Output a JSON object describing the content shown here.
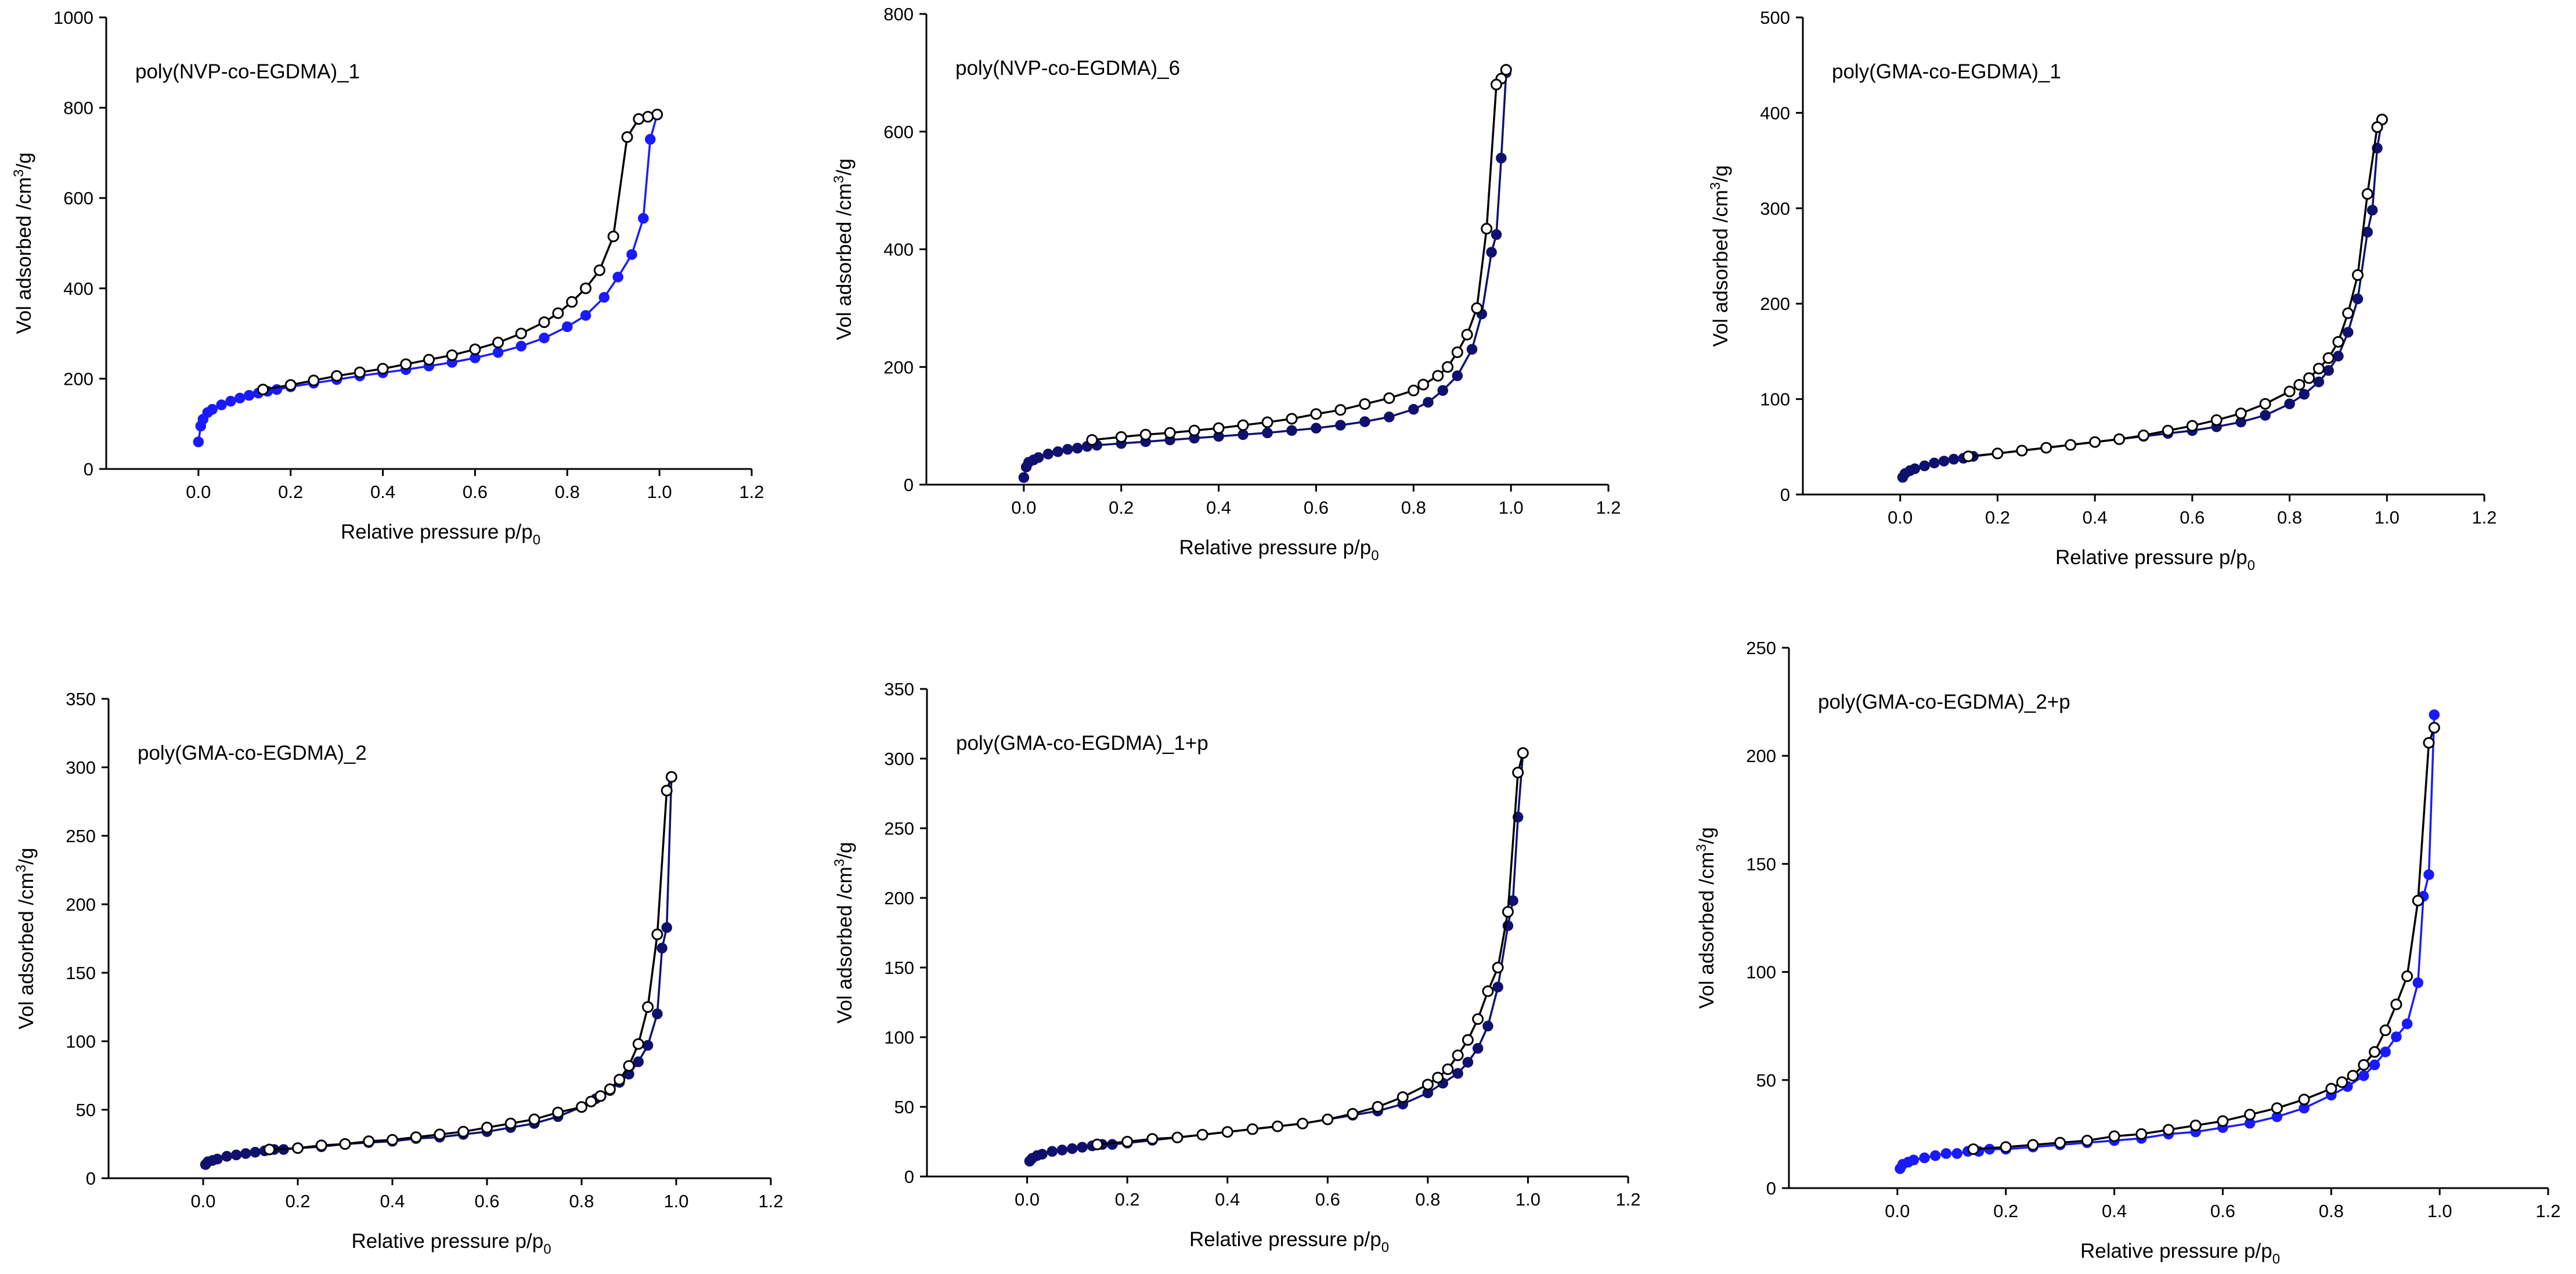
{
  "colors": {
    "desorption": "#000000",
    "adsorption": "#1a1aff",
    "adsorption_dark": "#10106e",
    "axis": "#000000"
  },
  "chart_data": [
    {
      "type": "line",
      "title": "poly(NVP-co-EGDMA)_1",
      "xlabel": "Relative pressure p/p",
      "xlabel_sub": "0",
      "ylabel": "Vol adsorbed /cm",
      "ylabel_sup": "3",
      "ylabel_tail": "/g",
      "xlim": [
        -0.2,
        1.2
      ],
      "ylim": [
        0,
        1000
      ],
      "xticks": [
        "0.0",
        "0.2",
        "0.4",
        "0.6",
        "0.8",
        "1.0",
        "1.2"
      ],
      "xtick_values": [
        0,
        0.2,
        0.4,
        0.6,
        0.8,
        1.0,
        1.2
      ],
      "yticks": [
        "0",
        "200",
        "400",
        "600",
        "800",
        "1000"
      ],
      "ytick_values": [
        0,
        200,
        400,
        600,
        800,
        1000
      ],
      "series": [
        {
          "name": "adsorption",
          "color": "#1a1aff",
          "marker": "filled",
          "x": [
            0.0,
            0.005,
            0.01,
            0.02,
            0.03,
            0.05,
            0.07,
            0.09,
            0.11,
            0.13,
            0.15,
            0.17,
            0.2,
            0.25,
            0.3,
            0.35,
            0.4,
            0.45,
            0.5,
            0.55,
            0.6,
            0.65,
            0.7,
            0.75,
            0.8,
            0.84,
            0.88,
            0.91,
            0.94,
            0.965,
            0.98,
            0.995
          ],
          "y": [
            60,
            95,
            110,
            125,
            132,
            142,
            150,
            157,
            163,
            168,
            172,
            176,
            182,
            190,
            198,
            206,
            213,
            220,
            228,
            236,
            246,
            258,
            272,
            290,
            315,
            340,
            380,
            425,
            475,
            555,
            730,
            785
          ]
        },
        {
          "name": "desorption",
          "color": "#000000",
          "marker": "open",
          "x": [
            0.995,
            0.975,
            0.955,
            0.93,
            0.9,
            0.87,
            0.84,
            0.81,
            0.78,
            0.75,
            0.7,
            0.65,
            0.6,
            0.55,
            0.5,
            0.45,
            0.4,
            0.35,
            0.3,
            0.25,
            0.2,
            0.14
          ],
          "y": [
            785,
            780,
            775,
            735,
            515,
            440,
            400,
            370,
            345,
            325,
            300,
            280,
            265,
            252,
            242,
            232,
            222,
            214,
            206,
            196,
            186,
            176
          ]
        }
      ]
    },
    {
      "type": "line",
      "title": "poly(NVP-co-EGDMA)_6",
      "xlabel": "Relative pressure p/p",
      "xlabel_sub": "0",
      "ylabel": "Vol adsorbed /cm",
      "ylabel_sup": "3",
      "ylabel_tail": "/g",
      "xlim": [
        -0.2,
        1.2
      ],
      "ylim": [
        0,
        800
      ],
      "xticks": [
        "0.0",
        "0.2",
        "0.4",
        "0.6",
        "0.8",
        "1.0",
        "1.2"
      ],
      "xtick_values": [
        0,
        0.2,
        0.4,
        0.6,
        0.8,
        1.0,
        1.2
      ],
      "yticks": [
        "0",
        "200",
        "400",
        "600",
        "800"
      ],
      "ytick_values": [
        0,
        200,
        400,
        600,
        800
      ],
      "series": [
        {
          "name": "adsorption",
          "color": "#10106e",
          "marker": "filled",
          "x": [
            0.0,
            0.005,
            0.01,
            0.02,
            0.03,
            0.05,
            0.07,
            0.09,
            0.11,
            0.13,
            0.15,
            0.2,
            0.25,
            0.3,
            0.35,
            0.4,
            0.45,
            0.5,
            0.55,
            0.6,
            0.65,
            0.7,
            0.75,
            0.8,
            0.83,
            0.86,
            0.89,
            0.92,
            0.94,
            0.96,
            0.97,
            0.98,
            0.99
          ],
          "y": [
            12,
            30,
            38,
            42,
            46,
            52,
            56,
            60,
            62,
            65,
            67,
            70,
            73,
            76,
            79,
            82,
            85,
            88,
            92,
            96,
            101,
            107,
            115,
            128,
            140,
            160,
            185,
            230,
            290,
            395,
            425,
            555,
            700
          ]
        },
        {
          "name": "desorption",
          "color": "#000000",
          "marker": "open",
          "x": [
            0.99,
            0.98,
            0.97,
            0.95,
            0.93,
            0.91,
            0.89,
            0.87,
            0.85,
            0.82,
            0.8,
            0.75,
            0.7,
            0.65,
            0.6,
            0.55,
            0.5,
            0.45,
            0.4,
            0.35,
            0.3,
            0.25,
            0.2,
            0.14
          ],
          "y": [
            705,
            690,
            680,
            435,
            300,
            255,
            225,
            200,
            185,
            170,
            160,
            147,
            137,
            127,
            120,
            112,
            106,
            101,
            96,
            92,
            88,
            85,
            81,
            76
          ]
        }
      ]
    },
    {
      "type": "line",
      "title": "poly(GMA-co-EGDMA)_1",
      "xlabel": "Relative pressure p/p",
      "xlabel_sub": "0",
      "ylabel": "Vol adsorbed /cm",
      "ylabel_sup": "3",
      "ylabel_tail": "/g",
      "xlim": [
        -0.2,
        1.2
      ],
      "ylim": [
        0,
        500
      ],
      "xticks": [
        "0.0",
        "0.2",
        "0.4",
        "0.6",
        "0.8",
        "1.0",
        "1.2"
      ],
      "xtick_values": [
        0,
        0.2,
        0.4,
        0.6,
        0.8,
        1.0,
        1.2
      ],
      "yticks": [
        "0",
        "100",
        "200",
        "300",
        "400",
        "500"
      ],
      "ytick_values": [
        0,
        100,
        200,
        300,
        400,
        500
      ],
      "series": [
        {
          "name": "adsorption",
          "color": "#10106e",
          "marker": "filled",
          "x": [
            0.005,
            0.01,
            0.02,
            0.03,
            0.05,
            0.07,
            0.09,
            0.11,
            0.13,
            0.15,
            0.2,
            0.25,
            0.3,
            0.35,
            0.4,
            0.45,
            0.5,
            0.55,
            0.6,
            0.65,
            0.7,
            0.75,
            0.8,
            0.83,
            0.86,
            0.88,
            0.9,
            0.92,
            0.94,
            0.96,
            0.97,
            0.98,
            0.99
          ],
          "y": [
            18,
            22,
            25,
            27,
            30,
            33,
            35,
            37,
            38,
            40,
            43,
            46,
            49,
            52,
            55,
            58,
            61,
            64,
            67,
            71,
            76,
            83,
            95,
            105,
            118,
            130,
            145,
            170,
            205,
            275,
            298,
            363,
            393
          ]
        },
        {
          "name": "desorption",
          "color": "#000000",
          "marker": "open",
          "x": [
            0.99,
            0.98,
            0.96,
            0.94,
            0.92,
            0.9,
            0.88,
            0.86,
            0.84,
            0.82,
            0.8,
            0.75,
            0.7,
            0.65,
            0.6,
            0.55,
            0.5,
            0.45,
            0.4,
            0.35,
            0.3,
            0.25,
            0.2,
            0.14
          ],
          "y": [
            393,
            385,
            315,
            230,
            190,
            160,
            143,
            132,
            122,
            115,
            108,
            95,
            85,
            78,
            72,
            67,
            62,
            58,
            55,
            52,
            49,
            46,
            43,
            40
          ]
        }
      ]
    },
    {
      "type": "line",
      "title": "poly(GMA-co-EGDMA)_2",
      "xlabel": "Relative pressure p/p",
      "xlabel_sub": "0",
      "ylabel": "Vol adsorbed /cm",
      "ylabel_sup": "3",
      "ylabel_tail": "/g",
      "xlim": [
        -0.2,
        1.2
      ],
      "ylim": [
        0,
        350
      ],
      "xticks": [
        "0.0",
        "0.2",
        "0.4",
        "0.6",
        "0.8",
        "1.0",
        "1.2"
      ],
      "xtick_values": [
        0,
        0.2,
        0.4,
        0.6,
        0.8,
        1.0,
        1.2
      ],
      "yticks": [
        "0",
        "50",
        "100",
        "150",
        "200",
        "250",
        "300",
        "350"
      ],
      "ytick_values": [
        0,
        50,
        100,
        150,
        200,
        250,
        300,
        350
      ],
      "series": [
        {
          "name": "adsorption",
          "color": "#10106e",
          "marker": "filled",
          "x": [
            0.005,
            0.01,
            0.02,
            0.03,
            0.05,
            0.07,
            0.09,
            0.11,
            0.13,
            0.15,
            0.17,
            0.2,
            0.25,
            0.3,
            0.35,
            0.4,
            0.45,
            0.5,
            0.55,
            0.6,
            0.65,
            0.7,
            0.75,
            0.8,
            0.83,
            0.86,
            0.88,
            0.9,
            0.92,
            0.94,
            0.96,
            0.97,
            0.98,
            0.99
          ],
          "y": [
            10,
            12,
            13,
            14,
            16,
            17,
            18,
            19,
            20,
            21,
            21,
            22,
            23,
            25,
            26,
            27,
            29,
            30,
            32,
            34,
            37,
            40,
            45,
            52,
            58,
            64,
            70,
            76,
            85,
            97,
            120,
            168,
            183,
            293
          ]
        },
        {
          "name": "desorption",
          "color": "#000000",
          "marker": "open",
          "x": [
            0.99,
            0.98,
            0.96,
            0.94,
            0.92,
            0.9,
            0.88,
            0.86,
            0.84,
            0.82,
            0.8,
            0.75,
            0.7,
            0.65,
            0.6,
            0.55,
            0.5,
            0.45,
            0.4,
            0.35,
            0.3,
            0.25,
            0.2,
            0.14
          ],
          "y": [
            293,
            283,
            178,
            125,
            98,
            82,
            72,
            65,
            60,
            56,
            52,
            48,
            43,
            40,
            37,
            34,
            32,
            30,
            28,
            27,
            25,
            24,
            22,
            21
          ]
        }
      ]
    },
    {
      "type": "line",
      "title": "poly(GMA-co-EGDMA)_1+p",
      "xlabel": "Relative pressure p/p",
      "xlabel_sub": "0",
      "ylabel": "Vol adsorbed /cm",
      "ylabel_sup": "3",
      "ylabel_tail": "/g",
      "xlim": [
        -0.2,
        1.2
      ],
      "ylim": [
        0,
        350
      ],
      "xticks": [
        "0.0",
        "0.2",
        "0.4",
        "0.6",
        "0.8",
        "1.0",
        "1.2"
      ],
      "xtick_values": [
        0,
        0.2,
        0.4,
        0.6,
        0.8,
        1.0,
        1.2
      ],
      "yticks": [
        "0",
        "50",
        "100",
        "150",
        "200",
        "250",
        "300",
        "350"
      ],
      "ytick_values": [
        0,
        50,
        100,
        150,
        200,
        250,
        300,
        350
      ],
      "series": [
        {
          "name": "adsorption",
          "color": "#10106e",
          "marker": "filled",
          "x": [
            0.005,
            0.01,
            0.02,
            0.03,
            0.05,
            0.07,
            0.09,
            0.11,
            0.13,
            0.15,
            0.17,
            0.2,
            0.25,
            0.3,
            0.35,
            0.4,
            0.45,
            0.5,
            0.55,
            0.6,
            0.65,
            0.7,
            0.75,
            0.8,
            0.83,
            0.86,
            0.88,
            0.9,
            0.92,
            0.94,
            0.96,
            0.97,
            0.98,
            0.99
          ],
          "y": [
            11,
            13,
            15,
            16,
            18,
            19,
            20,
            21,
            22,
            23,
            23,
            24,
            26,
            28,
            30,
            32,
            34,
            36,
            38,
            41,
            44,
            47,
            52,
            60,
            67,
            74,
            82,
            92,
            108,
            136,
            180,
            198,
            258,
            304
          ]
        },
        {
          "name": "desorption",
          "color": "#000000",
          "marker": "open",
          "x": [
            0.99,
            0.98,
            0.96,
            0.94,
            0.92,
            0.9,
            0.88,
            0.86,
            0.84,
            0.82,
            0.8,
            0.75,
            0.7,
            0.65,
            0.6,
            0.55,
            0.5,
            0.45,
            0.4,
            0.35,
            0.3,
            0.25,
            0.2,
            0.14
          ],
          "y": [
            304,
            290,
            190,
            150,
            133,
            113,
            98,
            87,
            77,
            71,
            66,
            57,
            50,
            45,
            41,
            38,
            36,
            34,
            32,
            30,
            28,
            27,
            25,
            23
          ]
        }
      ]
    },
    {
      "type": "line",
      "title": "poly(GMA-co-EGDMA)_2+p",
      "xlabel": "Relative pressure p/p",
      "xlabel_sub": "0",
      "ylabel": "Vol adsorbed /cm",
      "ylabel_sup": "3",
      "ylabel_tail": "/g",
      "xlim": [
        -0.2,
        1.2
      ],
      "ylim": [
        0,
        250
      ],
      "xticks": [
        "0.0",
        "0.2",
        "0.4",
        "0.6",
        "0.8",
        "1.0",
        "1.2"
      ],
      "xtick_values": [
        0,
        0.2,
        0.4,
        0.6,
        0.8,
        1.0,
        1.2
      ],
      "yticks": [
        "0",
        "50",
        "100",
        "150",
        "200",
        "250"
      ],
      "ytick_values": [
        0,
        50,
        100,
        150,
        200,
        250
      ],
      "series": [
        {
          "name": "adsorption",
          "color": "#1a1aff",
          "marker": "filled",
          "x": [
            0.005,
            0.01,
            0.02,
            0.03,
            0.05,
            0.07,
            0.09,
            0.11,
            0.13,
            0.15,
            0.17,
            0.2,
            0.25,
            0.3,
            0.35,
            0.4,
            0.45,
            0.5,
            0.55,
            0.6,
            0.65,
            0.7,
            0.75,
            0.8,
            0.83,
            0.86,
            0.88,
            0.9,
            0.92,
            0.94,
            0.96,
            0.97,
            0.98,
            0.99
          ],
          "y": [
            9,
            11,
            12,
            13,
            14,
            15,
            16,
            16,
            17,
            17,
            18,
            18,
            19,
            20,
            21,
            22,
            23,
            25,
            26,
            28,
            30,
            33,
            37,
            43,
            47,
            52,
            57,
            63,
            70,
            76,
            95,
            135,
            145,
            219
          ]
        },
        {
          "name": "desorption",
          "color": "#000000",
          "marker": "open",
          "x": [
            0.99,
            0.98,
            0.96,
            0.94,
            0.92,
            0.9,
            0.88,
            0.86,
            0.84,
            0.82,
            0.8,
            0.75,
            0.7,
            0.65,
            0.6,
            0.55,
            0.5,
            0.45,
            0.4,
            0.35,
            0.3,
            0.25,
            0.2,
            0.14
          ],
          "y": [
            213,
            206,
            133,
            98,
            85,
            73,
            63,
            57,
            52,
            49,
            46,
            41,
            37,
            34,
            31,
            29,
            27,
            25,
            24,
            22,
            21,
            20,
            19,
            18
          ]
        }
      ]
    }
  ]
}
